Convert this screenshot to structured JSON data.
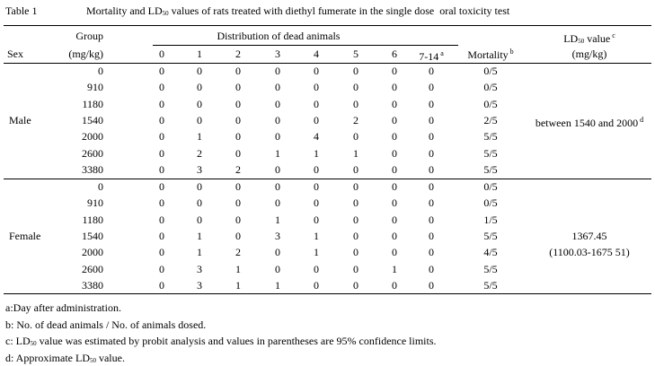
{
  "caption": {
    "label": "Table 1",
    "title": [
      "Mortality and LD",
      "50",
      " values of rats treated with diethyl fumerate in the single dose  oral toxicity test"
    ]
  },
  "header": {
    "sex": "Sex",
    "group": "Group",
    "group_unit": "(mg/kg)",
    "distribution": "Distribution of dead animals",
    "days": [
      "0",
      "1",
      "2",
      "3",
      "4",
      "5",
      "6",
      "7-14"
    ],
    "days_note": "a",
    "mortality": "Mortality",
    "mortality_note": "b",
    "ld50": [
      "LD",
      "50",
      " value"
    ],
    "ld50_note": "c",
    "ld50_unit": "(mg/kg)"
  },
  "groups": [
    {
      "sex": "Male",
      "rows": [
        {
          "dose": 0,
          "deaths": [
            0,
            0,
            0,
            0,
            0,
            0,
            0,
            0
          ],
          "mortality": "0/5"
        },
        {
          "dose": 910,
          "deaths": [
            0,
            0,
            0,
            0,
            0,
            0,
            0,
            0
          ],
          "mortality": "0/5"
        },
        {
          "dose": 1180,
          "deaths": [
            0,
            0,
            0,
            0,
            0,
            0,
            0,
            0
          ],
          "mortality": "0/5"
        },
        {
          "dose": 1540,
          "deaths": [
            0,
            0,
            0,
            0,
            0,
            2,
            0,
            0
          ],
          "mortality": "2/5"
        },
        {
          "dose": 2000,
          "deaths": [
            0,
            1,
            0,
            0,
            4,
            0,
            0,
            0
          ],
          "mortality": "5/5"
        },
        {
          "dose": 2600,
          "deaths": [
            0,
            2,
            0,
            1,
            1,
            1,
            0,
            0
          ],
          "mortality": "5/5"
        },
        {
          "dose": 3380,
          "deaths": [
            0,
            3,
            2,
            0,
            0,
            0,
            0,
            0
          ],
          "mortality": "5/5"
        }
      ],
      "ld50": [
        [
          "between 1540 and 2000",
          "d"
        ]
      ]
    },
    {
      "sex": "Female",
      "rows": [
        {
          "dose": 0,
          "deaths": [
            0,
            0,
            0,
            0,
            0,
            0,
            0,
            0
          ],
          "mortality": "0/5"
        },
        {
          "dose": 910,
          "deaths": [
            0,
            0,
            0,
            0,
            0,
            0,
            0,
            0
          ],
          "mortality": "0/5"
        },
        {
          "dose": 1180,
          "deaths": [
            0,
            0,
            0,
            1,
            0,
            0,
            0,
            0
          ],
          "mortality": "1/5"
        },
        {
          "dose": 1540,
          "deaths": [
            0,
            1,
            0,
            3,
            1,
            0,
            0,
            0
          ],
          "mortality": "5/5"
        },
        {
          "dose": 2000,
          "deaths": [
            0,
            1,
            2,
            0,
            1,
            0,
            0,
            0
          ],
          "mortality": "4/5"
        },
        {
          "dose": 2600,
          "deaths": [
            0,
            3,
            1,
            0,
            0,
            0,
            1,
            0
          ],
          "mortality": "5/5"
        },
        {
          "dose": 3380,
          "deaths": [
            0,
            3,
            1,
            1,
            0,
            0,
            0,
            0
          ],
          "mortality": "5/5"
        }
      ],
      "ld50": [
        [
          "1367.45"
        ],
        [
          "(1100.03-1675 51)"
        ]
      ]
    }
  ],
  "footnotes": [
    [
      "a:Day after administration."
    ],
    [
      "b: No. of dead animals / No. of animals dosed."
    ],
    [
      "c: LD",
      "50",
      " value was estimated by probit analysis and values in parentheses are 95% confidence limits."
    ],
    [
      "d: Approximate LD",
      "50",
      " value."
    ]
  ]
}
